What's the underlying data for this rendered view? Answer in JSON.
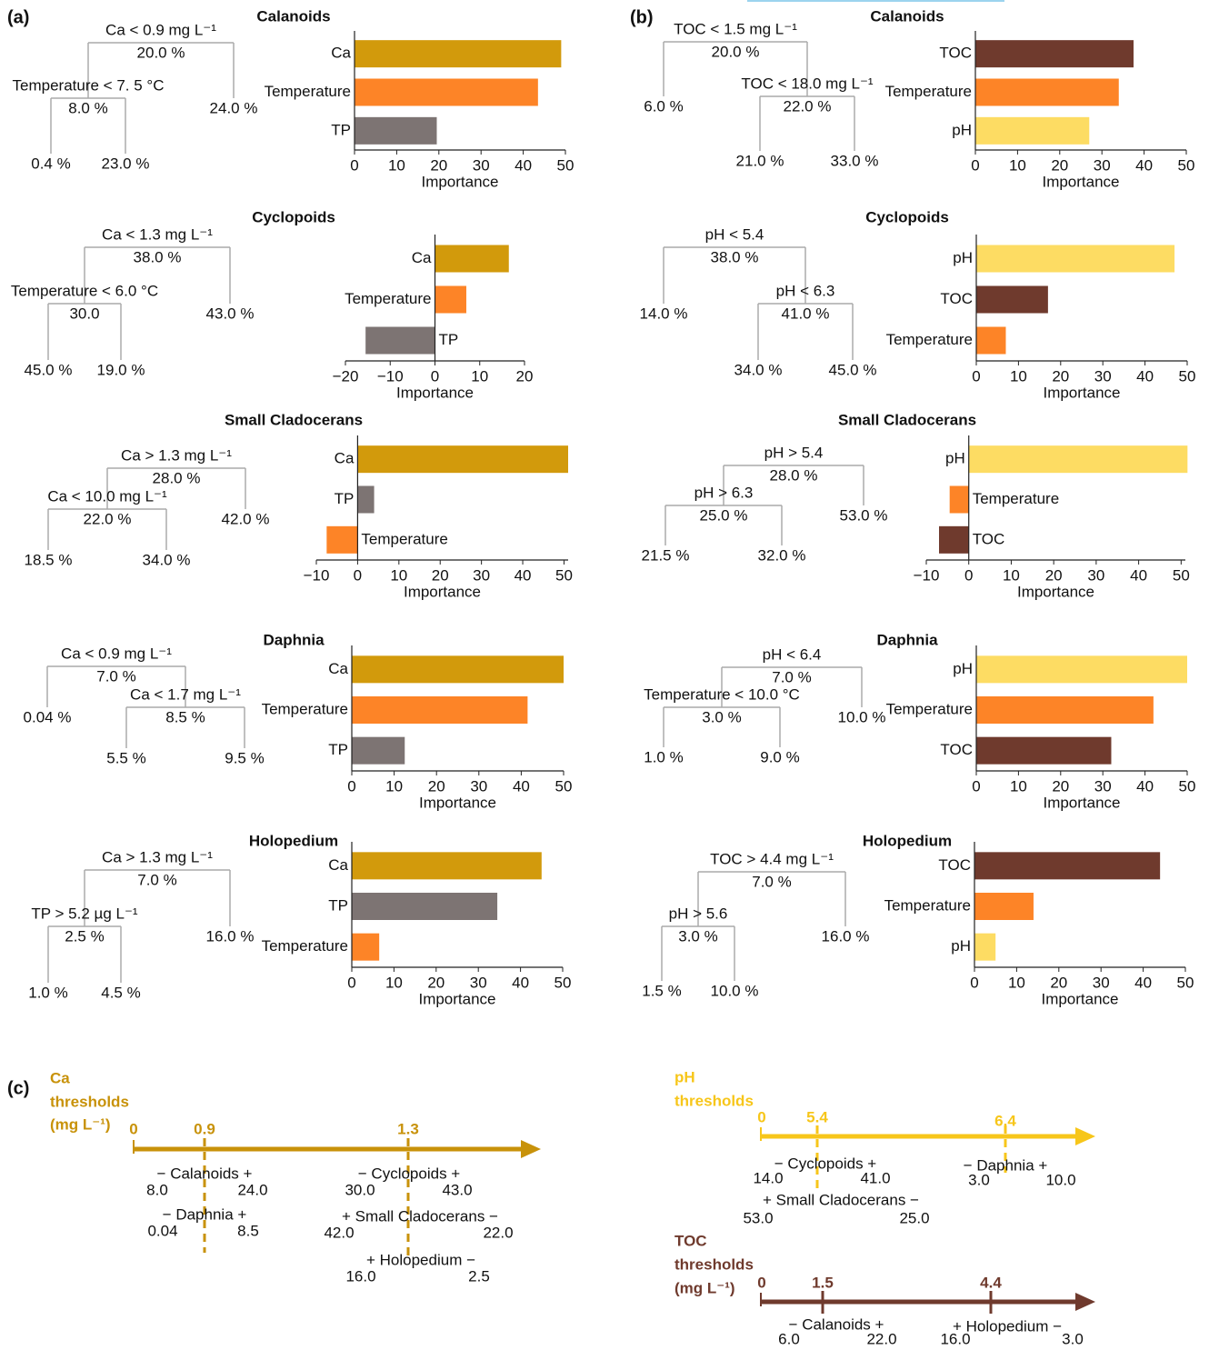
{
  "panel_labels": [
    "(a)",
    "(b)",
    "(c)"
  ],
  "chart_data": [
    {
      "type": "bar",
      "orientation": "horizontal",
      "title": "Calanoids",
      "categories": [
        "Ca",
        "Temperature",
        "TP"
      ],
      "values": [
        49,
        43.5,
        19.5
      ],
      "colors": [
        "#d29a0c",
        "#fd8427",
        "#7d7473"
      ],
      "xlim": [
        0,
        50
      ],
      "xticks": [
        0,
        10,
        20,
        30,
        40,
        50
      ],
      "xlabel": "Importance"
    },
    {
      "type": "bar",
      "orientation": "horizontal",
      "title": "Cyclopoids",
      "categories": [
        "Ca",
        "Temperature",
        "TP"
      ],
      "values": [
        16.5,
        7,
        -15.5
      ],
      "colors": [
        "#d29a0c",
        "#fd8427",
        "#7d7473"
      ],
      "xlim": [
        -20,
        20
      ],
      "xticks": [
        {
          "value": -20,
          "label": "−20"
        },
        {
          "value": -10,
          "label": "−10"
        },
        0,
        10,
        20
      ],
      "xlabel": "Importance"
    },
    {
      "type": "bar",
      "orientation": "horizontal",
      "title": "Small Cladocerans",
      "categories": [
        "Ca",
        "TP",
        "Temperature"
      ],
      "values": [
        51,
        4,
        -7.5
      ],
      "colors": [
        "#d29a0c",
        "#7d7473",
        "#fd8427"
      ],
      "xlim": [
        -10,
        51
      ],
      "xticks": [
        {
          "value": -10,
          "label": "−10"
        },
        0,
        10,
        20,
        30,
        40,
        50
      ],
      "xlabel": "Importance"
    },
    {
      "type": "bar",
      "orientation": "horizontal",
      "title": "Daphnia",
      "categories": [
        "Ca",
        "Temperature",
        "TP"
      ],
      "values": [
        50,
        41.5,
        12.5
      ],
      "colors": [
        "#d29a0c",
        "#fd8427",
        "#7d7473"
      ],
      "xlim": [
        0,
        50
      ],
      "xticks": [
        0,
        10,
        20,
        30,
        40,
        50
      ],
      "xlabel": "Importance"
    },
    {
      "type": "bar",
      "orientation": "horizontal",
      "title": "Holopedium",
      "categories": [
        "Ca",
        "TP",
        "Temperature"
      ],
      "values": [
        45,
        34.5,
        6.5
      ],
      "colors": [
        "#d29a0c",
        "#7d7473",
        "#fd8427"
      ],
      "xlim": [
        0,
        50
      ],
      "xticks": [
        0,
        10,
        20,
        30,
        40,
        50
      ],
      "xlabel": "Importance"
    },
    {
      "type": "bar",
      "orientation": "horizontal",
      "title": "Calanoids",
      "categories": [
        "TOC",
        "Temperature",
        "pH"
      ],
      "values": [
        37.5,
        34,
        27
      ],
      "colors": [
        "#6f3a2d",
        "#fd8427",
        "#fddc63"
      ],
      "xlim": [
        0,
        50
      ],
      "xticks": [
        0,
        10,
        20,
        30,
        40,
        50
      ],
      "xlabel": "Importance"
    },
    {
      "type": "bar",
      "orientation": "horizontal",
      "title": "Cyclopoids",
      "categories": [
        "pH",
        "TOC",
        "Temperature"
      ],
      "values": [
        47,
        17,
        7
      ],
      "colors": [
        "#fddc63",
        "#6f3a2d",
        "#fd8427"
      ],
      "xlim": [
        0,
        50
      ],
      "xticks": [
        0,
        10,
        20,
        30,
        40,
        50
      ],
      "xlabel": "Importance"
    },
    {
      "type": "bar",
      "orientation": "horizontal",
      "title": "Small Cladocerans",
      "categories": [
        "pH",
        "Temperature",
        "TOC"
      ],
      "values": [
        51.5,
        -4.5,
        -7
      ],
      "colors": [
        "#fddc63",
        "#fd8427",
        "#6f3a2d"
      ],
      "xlim": [
        -10,
        51
      ],
      "xticks": [
        {
          "value": -10,
          "label": "−10"
        },
        0,
        10,
        20,
        30,
        40,
        50
      ],
      "xlabel": "Importance"
    },
    {
      "type": "bar",
      "orientation": "horizontal",
      "title": "Daphnia",
      "categories": [
        "pH",
        "Temperature",
        "TOC"
      ],
      "values": [
        50,
        42,
        32
      ],
      "colors": [
        "#fddc63",
        "#fd8427",
        "#6f3a2d"
      ],
      "xlim": [
        0,
        50
      ],
      "xticks": [
        0,
        10,
        20,
        30,
        40,
        50
      ],
      "xlabel": "Importance"
    },
    {
      "type": "bar",
      "orientation": "horizontal",
      "title": "Holopedium",
      "categories": [
        "TOC",
        "Temperature",
        "pH"
      ],
      "values": [
        44,
        14,
        5
      ],
      "colors": [
        "#6f3a2d",
        "#fd8427",
        "#fddc63"
      ],
      "xlim": [
        0,
        50
      ],
      "xticks": [
        0,
        10,
        20,
        30,
        40,
        50
      ],
      "xlabel": "Importance"
    }
  ],
  "trees": [
    {
      "split": "Ca < 0.9 mg L⁻¹",
      "value": "20.0 %",
      "left": {
        "split": "Temperature < 7. 5 °C",
        "value": "8.0 %",
        "left": {
          "value": "0.4 %"
        },
        "right": {
          "value": "23.0 %"
        }
      },
      "right": {
        "value": "24.0 %"
      }
    },
    {
      "split": "Ca < 1.3 mg L⁻¹",
      "value": "38.0 %",
      "left": {
        "split": "Temperature < 6.0 °C",
        "value": "30.0",
        "left": {
          "value": "45.0 %"
        },
        "right": {
          "value": "19.0 %"
        }
      },
      "right": {
        "value": "43.0 %"
      }
    },
    {
      "split": "Ca > 1.3 mg L⁻¹",
      "value": "28.0 %",
      "left": {
        "split": "Ca < 10.0 mg L⁻¹",
        "value": "22.0 %",
        "left": {
          "value": "18.5 %"
        },
        "right": {
          "value": "34.0 %"
        }
      },
      "right": {
        "value": "42.0 %"
      }
    },
    {
      "split": "Ca < 0.9 mg L⁻¹",
      "value": "7.0 %",
      "left": {
        "value": "0.04 %"
      },
      "right": {
        "split": "Ca < 1.7 mg L⁻¹",
        "value": "8.5 %",
        "left": {
          "value": "5.5 %"
        },
        "right": {
          "value": "9.5 %"
        }
      }
    },
    {
      "split": "Ca > 1.3 mg L⁻¹",
      "value": "7.0 %",
      "left": {
        "split": "TP > 5.2 µg L⁻¹",
        "value": "2.5 %",
        "left": {
          "value": "1.0 %"
        },
        "right": {
          "value": "4.5 %"
        }
      },
      "right": {
        "value": "16.0 %"
      }
    },
    {
      "split": "TOC < 1.5 mg L⁻¹",
      "value": "20.0 %",
      "left": {
        "value": "6.0 %"
      },
      "right": {
        "split": "TOC < 18.0 mg L⁻¹",
        "value": "22.0 %",
        "left": {
          "value": "21.0 %"
        },
        "right": {
          "value": "33.0 %"
        }
      }
    },
    {
      "split": "pH < 5.4",
      "value": "38.0 %",
      "left": {
        "value": "14.0 %"
      },
      "right": {
        "split": "pH < 6.3",
        "value": "41.0 %",
        "left": {
          "value": "34.0 %"
        },
        "right": {
          "value": "45.0 %"
        }
      }
    },
    {
      "split": "pH > 5.4",
      "value": "28.0 %",
      "left": {
        "split": "pH > 6.3",
        "value": "25.0 %",
        "left": {
          "value": "21.5 %"
        },
        "right": {
          "value": "32.0 %"
        }
      },
      "right": {
        "value": "53.0 %"
      }
    },
    {
      "split": "pH < 6.4",
      "value": "7.0 %",
      "left": {
        "split": "Temperature < 10.0 °C",
        "value": "3.0 %",
        "left": {
          "value": "1.0 %"
        },
        "right": {
          "value": "9.0 %"
        }
      },
      "right": {
        "value": "10.0 %"
      }
    },
    {
      "split": "TOC > 4.4 mg L⁻¹",
      "value": "7.0 %",
      "left": {
        "split": "pH > 5.6",
        "value": "3.0 %",
        "left": {
          "value": "1.5 %"
        },
        "right": {
          "value": "10.0 %"
        }
      },
      "right": {
        "value": "16.0 %"
      }
    }
  ],
  "thresholds": [
    {
      "title": [
        "Ca",
        "thresholds",
        "(mg L⁻¹)"
      ],
      "color": "#c8920a",
      "ticks": [
        "0",
        "0.9",
        "1.3"
      ],
      "groups": [
        {
          "label": "− Calanoids +",
          "left": "8.0",
          "right": "24.0"
        },
        {
          "label": "− Daphnia +",
          "left": "0.04",
          "right": "8.5"
        },
        {
          "label": "− Cyclopoids +",
          "left": "30.0",
          "right": "43.0"
        },
        {
          "label": "+ Small Cladocerans −",
          "left": "42.0",
          "right": "22.0"
        },
        {
          "label": "+ Holopedium −",
          "left": "16.0",
          "right": "2.5"
        }
      ]
    },
    {
      "title": [
        "pH",
        "thresholds"
      ],
      "color": "#f7c61a",
      "ticks": [
        "0",
        "5.4",
        "6.4"
      ],
      "groups": [
        {
          "label": "− Cyclopoids +",
          "left": "14.0",
          "right": "41.0"
        },
        {
          "label": "+ Small Cladocerans −",
          "left": "53.0",
          "right": "25.0"
        },
        {
          "label": "− Daphnia +",
          "left": "3.0",
          "right": "10.0"
        }
      ]
    },
    {
      "title": [
        "TOC",
        "thresholds",
        "(mg L⁻¹)"
      ],
      "color": "#6f3a2d",
      "ticks": [
        "0",
        "1.5",
        "4.4"
      ],
      "groups": [
        {
          "label": "− Calanoids +",
          "left": "6.0",
          "right": "22.0"
        },
        {
          "label": "+ Holopedium −",
          "left": "16.0",
          "right": "3.0"
        }
      ]
    }
  ]
}
